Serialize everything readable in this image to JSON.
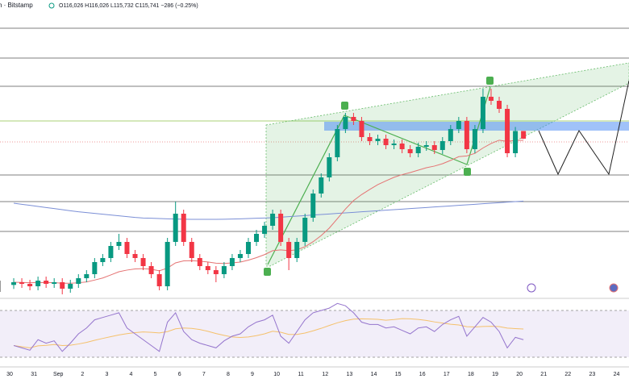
{
  "header": {
    "symbol": "h · Bitstamp",
    "ohlc": "O116,026 H116,026 L115,732 C115,741 −286 (−0.25%)"
  },
  "chart_data": {
    "type": "candlestick",
    "up_color": "#089981",
    "down_color": "#f23645",
    "ema_color": "#e57373",
    "ma_color": "#7b8fd6",
    "rsi_color": "#9575cd",
    "rsi_ma_color": "#f5c16c",
    "ylim": [
      109800,
      120900
    ],
    "x_labels": [
      "30",
      "31",
      "Sep",
      "2",
      "3",
      "4",
      "5",
      "6",
      "7",
      "8",
      "9",
      "10",
      "11",
      "12",
      "13",
      "14",
      "15",
      "16",
      "17",
      "18",
      "19",
      "20",
      "21",
      "22",
      "23",
      "24"
    ],
    "pattern_labels": [
      "A",
      "B",
      "C",
      "D"
    ],
    "ohlc": [
      [
        110300,
        110550,
        110150,
        110400
      ],
      [
        110400,
        110550,
        110190,
        110340
      ],
      [
        110340,
        110490,
        110100,
        110250
      ],
      [
        110250,
        110610,
        110100,
        110460
      ],
      [
        110460,
        110610,
        110190,
        110340
      ],
      [
        110340,
        110550,
        110190,
        110400
      ],
      [
        110400,
        110550,
        109950,
        110160
      ],
      [
        110160,
        110490,
        110010,
        110340
      ],
      [
        110340,
        110700,
        110190,
        110550
      ],
      [
        110550,
        110850,
        110400,
        110700
      ],
      [
        110700,
        111300,
        110550,
        111150
      ],
      [
        111150,
        111450,
        111000,
        111300
      ],
      [
        111300,
        111900,
        111150,
        111750
      ],
      [
        111750,
        112200,
        111600,
        111900
      ],
      [
        111900,
        112050,
        111300,
        111450
      ],
      [
        111450,
        111600,
        111150,
        111300
      ],
      [
        111300,
        111450,
        110850,
        111000
      ],
      [
        111000,
        111150,
        110550,
        110700
      ],
      [
        110700,
        110850,
        110100,
        110250
      ],
      [
        110250,
        112050,
        110100,
        111900
      ],
      [
        111900,
        113400,
        111750,
        112950
      ],
      [
        112950,
        113100,
        111750,
        111900
      ],
      [
        111900,
        112050,
        111150,
        111300
      ],
      [
        111300,
        111450,
        110850,
        111000
      ],
      [
        111000,
        111150,
        110700,
        110850
      ],
      [
        110850,
        111000,
        110400,
        110700
      ],
      [
        110700,
        111150,
        110550,
        111000
      ],
      [
        111000,
        111450,
        110850,
        111300
      ],
      [
        111300,
        111600,
        111150,
        111450
      ],
      [
        111450,
        112050,
        111300,
        111900
      ],
      [
        111900,
        112350,
        111750,
        112200
      ],
      [
        112200,
        112650,
        112050,
        112500
      ],
      [
        112500,
        113100,
        112350,
        112950
      ],
      [
        112950,
        113100,
        111750,
        111900
      ],
      [
        111900,
        112050,
        110850,
        111300
      ],
      [
        111300,
        112050,
        111150,
        111900
      ],
      [
        111900,
        112950,
        111750,
        112800
      ],
      [
        112800,
        113850,
        112650,
        113700
      ],
      [
        113700,
        114450,
        113550,
        114300
      ],
      [
        114300,
        115200,
        114150,
        115050
      ],
      [
        115050,
        116250,
        114900,
        116100
      ],
      [
        116100,
        116700,
        115950,
        116550
      ],
      [
        116550,
        116700,
        116250,
        116400
      ],
      [
        116400,
        116550,
        115650,
        115800
      ],
      [
        115800,
        115950,
        115500,
        115650
      ],
      [
        115650,
        115890,
        115500,
        115740
      ],
      [
        115740,
        115890,
        115350,
        115500
      ],
      [
        115500,
        115710,
        115350,
        115560
      ],
      [
        115560,
        115710,
        115200,
        115350
      ],
      [
        115350,
        115500,
        115050,
        115200
      ],
      [
        115200,
        115590,
        115050,
        115440
      ],
      [
        115440,
        115650,
        115290,
        115500
      ],
      [
        115500,
        115650,
        115170,
        115320
      ],
      [
        115320,
        115800,
        115170,
        115650
      ],
      [
        115650,
        116250,
        115500,
        116100
      ],
      [
        116100,
        116550,
        115950,
        116400
      ],
      [
        116400,
        116550,
        115200,
        115350
      ],
      [
        115350,
        116250,
        115200,
        116100
      ],
      [
        116100,
        117600,
        115950,
        117300
      ],
      [
        117300,
        117600,
        117000,
        117150
      ],
      [
        117150,
        117300,
        116700,
        116850
      ],
      [
        116850,
        117000,
        115050,
        115200
      ],
      [
        115200,
        116176,
        115050,
        116026
      ],
      [
        116026,
        116026,
        115732,
        115741
      ]
    ],
    "ma200": [
      113340,
      113300,
      113260,
      113220,
      113180,
      113140,
      113100,
      113060,
      113020,
      112990,
      112960,
      112930,
      112900,
      112870,
      112840,
      112810,
      112790,
      112780,
      112770,
      112760,
      112750,
      112745,
      112740,
      112740,
      112740,
      112740,
      112745,
      112750,
      112760,
      112770,
      112780,
      112790,
      112800,
      112820,
      112840,
      112860,
      112880,
      112900,
      112920,
      112940,
      112960,
      112980,
      113000,
      113020,
      113040,
      113060,
      113080,
      113100,
      113120,
      113140,
      113160,
      113180,
      113200,
      113220,
      113240,
      113260,
      113280,
      113300,
      113320,
      113340,
      113360,
      113380,
      113400,
      113420
    ],
    "rsi_lim": [
      0,
      100
    ],
    "rsi_bands": [
      30,
      70
    ],
    "rsi": [
      40,
      38,
      36,
      45,
      42,
      44,
      35,
      42,
      50,
      55,
      62,
      64,
      66,
      68,
      55,
      50,
      45,
      40,
      35,
      60,
      68,
      52,
      45,
      42,
      40,
      38,
      44,
      48,
      50,
      56,
      60,
      62,
      66,
      48,
      42,
      52,
      62,
      68,
      70,
      72,
      76,
      74,
      68,
      60,
      58,
      58,
      55,
      56,
      53,
      50,
      55,
      56,
      52,
      58,
      62,
      65,
      48,
      56,
      64,
      60,
      52,
      38,
      47,
      45
    ]
  }
}
